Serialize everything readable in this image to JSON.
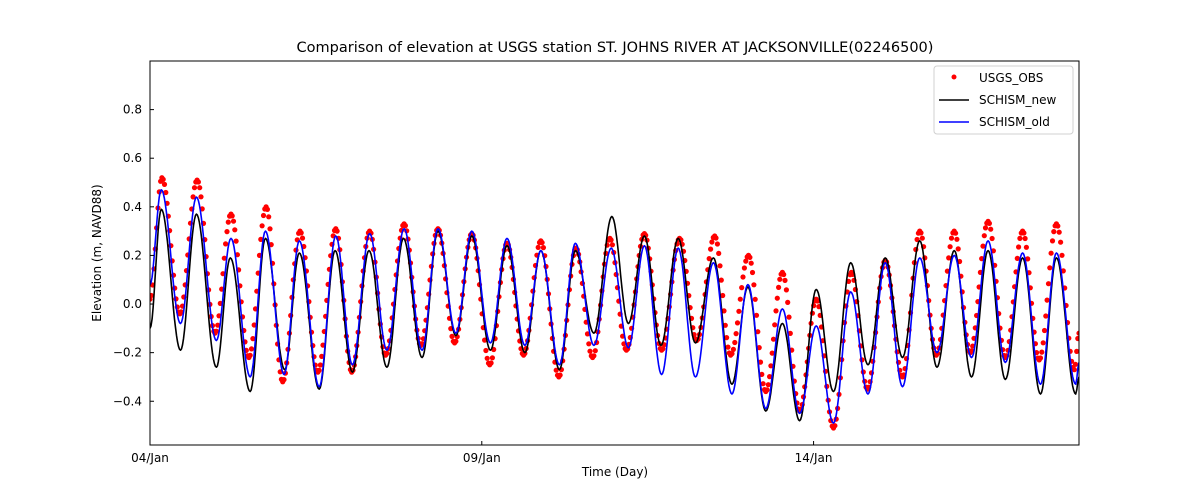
{
  "chart_data": {
    "type": "line",
    "title": "Comparison of elevation at USGS station ST. JOHNS RIVER AT JACKSONVILLE(02246500)",
    "xlabel": "Time (Day)",
    "ylabel": "Elevation (m, NAVD88)",
    "x_units": "days since 04/Jan 00:00",
    "xlim": [
      0,
      14.0
    ],
    "ylim": [
      -0.58,
      1.0
    ],
    "x_ticks": [
      {
        "value": 0,
        "label": "04/Jan"
      },
      {
        "value": 5,
        "label": "09/Jan"
      },
      {
        "value": 10,
        "label": "14/Jan"
      }
    ],
    "y_ticks": [
      {
        "value": -0.4,
        "label": "−0.4"
      },
      {
        "value": -0.2,
        "label": "−0.2"
      },
      {
        "value": 0.0,
        "label": "0.0"
      },
      {
        "value": 0.2,
        "label": "0.2"
      },
      {
        "value": 0.4,
        "label": "0.4"
      },
      {
        "value": 0.6,
        "label": "0.6"
      },
      {
        "value": 0.8,
        "label": "0.8"
      }
    ],
    "grid": false,
    "legend_position": "top-right",
    "series": [
      {
        "name": "USGS_OBS",
        "style": "markers",
        "color": "#ff0000",
        "start": {
          "x": 0.0,
          "y": 0.02
        },
        "extrema": [
          [
            0.18,
            0.52
          ],
          [
            0.45,
            -0.04
          ],
          [
            0.71,
            0.51
          ],
          [
            0.98,
            -0.12
          ],
          [
            1.22,
            0.37
          ],
          [
            1.49,
            -0.22
          ],
          [
            1.75,
            0.4
          ],
          [
            2.0,
            -0.32
          ],
          [
            2.26,
            0.3
          ],
          [
            2.53,
            -0.28
          ],
          [
            2.8,
            0.31
          ],
          [
            3.04,
            -0.28
          ],
          [
            3.31,
            0.3
          ],
          [
            3.55,
            -0.21
          ],
          [
            3.83,
            0.33
          ],
          [
            4.08,
            -0.17
          ],
          [
            4.34,
            0.31
          ],
          [
            4.59,
            -0.16
          ],
          [
            4.85,
            0.29
          ],
          [
            5.12,
            -0.25
          ],
          [
            5.38,
            0.25
          ],
          [
            5.63,
            -0.21
          ],
          [
            5.89,
            0.26
          ],
          [
            6.16,
            -0.3
          ],
          [
            6.42,
            0.23
          ],
          [
            6.67,
            -0.22
          ],
          [
            6.93,
            0.27
          ],
          [
            7.18,
            -0.19
          ],
          [
            7.45,
            0.29
          ],
          [
            7.71,
            -0.19
          ],
          [
            7.98,
            0.27
          ],
          [
            8.24,
            -0.15
          ],
          [
            8.51,
            0.28
          ],
          [
            8.75,
            -0.21
          ],
          [
            9.02,
            0.2
          ],
          [
            9.28,
            -0.36
          ],
          [
            9.53,
            0.13
          ],
          [
            9.79,
            -0.44
          ],
          [
            10.04,
            0.02
          ],
          [
            10.3,
            -0.51
          ],
          [
            10.57,
            0.13
          ],
          [
            10.81,
            -0.35
          ],
          [
            11.08,
            0.18
          ],
          [
            11.34,
            -0.3
          ],
          [
            11.6,
            0.3
          ],
          [
            11.85,
            -0.21
          ],
          [
            12.12,
            0.3
          ],
          [
            12.36,
            -0.2
          ],
          [
            12.63,
            0.34
          ],
          [
            12.89,
            -0.22
          ],
          [
            13.15,
            0.3
          ],
          [
            13.4,
            -0.23
          ],
          [
            13.66,
            0.33
          ],
          [
            13.93,
            -0.27
          ]
        ],
        "end": {
          "x": 14.0,
          "y": -0.12
        }
      },
      {
        "name": "SCHISM_new",
        "style": "line",
        "color": "#000000",
        "start": {
          "x": 0.0,
          "y": -0.1
        },
        "extrema": [
          [
            0.17,
            0.39
          ],
          [
            0.46,
            -0.19
          ],
          [
            0.7,
            0.37
          ],
          [
            1.0,
            -0.26
          ],
          [
            1.21,
            0.19
          ],
          [
            1.51,
            -0.36
          ],
          [
            1.74,
            0.27
          ],
          [
            2.03,
            -0.27
          ],
          [
            2.25,
            0.21
          ],
          [
            2.55,
            -0.35
          ],
          [
            2.79,
            0.22
          ],
          [
            3.05,
            -0.28
          ],
          [
            3.3,
            0.22
          ],
          [
            3.57,
            -0.26
          ],
          [
            3.82,
            0.27
          ],
          [
            4.1,
            -0.22
          ],
          [
            4.34,
            0.3
          ],
          [
            4.61,
            -0.13
          ],
          [
            4.85,
            0.28
          ],
          [
            5.13,
            -0.19
          ],
          [
            5.38,
            0.24
          ],
          [
            5.65,
            -0.2
          ],
          [
            5.89,
            0.22
          ],
          [
            6.17,
            -0.27
          ],
          [
            6.41,
            0.22
          ],
          [
            6.69,
            -0.12
          ],
          [
            6.96,
            0.36
          ],
          [
            7.21,
            -0.08
          ],
          [
            7.45,
            0.28
          ],
          [
            7.7,
            -0.17
          ],
          [
            7.96,
            0.27
          ],
          [
            8.22,
            -0.16
          ],
          [
            8.49,
            0.19
          ],
          [
            8.77,
            -0.33
          ],
          [
            9.01,
            0.07
          ],
          [
            9.28,
            -0.44
          ],
          [
            9.53,
            -0.08
          ],
          [
            9.79,
            -0.48
          ],
          [
            10.04,
            0.06
          ],
          [
            10.3,
            -0.36
          ],
          [
            10.56,
            0.17
          ],
          [
            10.82,
            -0.25
          ],
          [
            11.08,
            0.19
          ],
          [
            11.34,
            -0.22
          ],
          [
            11.6,
            0.26
          ],
          [
            11.86,
            -0.26
          ],
          [
            12.12,
            0.22
          ],
          [
            12.38,
            -0.3
          ],
          [
            12.63,
            0.22
          ],
          [
            12.89,
            -0.31
          ],
          [
            13.15,
            0.19
          ],
          [
            13.42,
            -0.37
          ],
          [
            13.66,
            0.19
          ],
          [
            13.95,
            -0.37
          ]
        ],
        "end": {
          "x": 14.0,
          "y": -0.3
        }
      },
      {
        "name": "SCHISM_old",
        "style": "line",
        "color": "#0000ff",
        "start": {
          "x": 0.0,
          "y": 0.08
        },
        "extrema": [
          [
            0.17,
            0.47
          ],
          [
            0.46,
            -0.08
          ],
          [
            0.7,
            0.44
          ],
          [
            1.0,
            -0.15
          ],
          [
            1.22,
            0.27
          ],
          [
            1.51,
            -0.3
          ],
          [
            1.74,
            0.3
          ],
          [
            2.02,
            -0.29
          ],
          [
            2.25,
            0.26
          ],
          [
            2.55,
            -0.34
          ],
          [
            2.8,
            0.28
          ],
          [
            3.05,
            -0.25
          ],
          [
            3.31,
            0.29
          ],
          [
            3.57,
            -0.19
          ],
          [
            3.83,
            0.31
          ],
          [
            4.1,
            -0.19
          ],
          [
            4.34,
            0.31
          ],
          [
            4.61,
            -0.12
          ],
          [
            4.85,
            0.3
          ],
          [
            5.13,
            -0.16
          ],
          [
            5.38,
            0.27
          ],
          [
            5.65,
            -0.17
          ],
          [
            5.89,
            0.22
          ],
          [
            6.17,
            -0.25
          ],
          [
            6.41,
            0.25
          ],
          [
            6.69,
            -0.17
          ],
          [
            6.95,
            0.23
          ],
          [
            7.21,
            -0.18
          ],
          [
            7.45,
            0.24
          ],
          [
            7.71,
            -0.29
          ],
          [
            7.96,
            0.23
          ],
          [
            8.22,
            -0.3
          ],
          [
            8.49,
            0.17
          ],
          [
            8.77,
            -0.37
          ],
          [
            9.01,
            0.08
          ],
          [
            9.28,
            -0.43
          ],
          [
            9.53,
            -0.02
          ],
          [
            9.79,
            -0.45
          ],
          [
            10.04,
            -0.09
          ],
          [
            10.3,
            -0.49
          ],
          [
            10.56,
            0.05
          ],
          [
            10.82,
            -0.37
          ],
          [
            11.08,
            0.17
          ],
          [
            11.34,
            -0.34
          ],
          [
            11.6,
            0.19
          ],
          [
            11.86,
            -0.2
          ],
          [
            12.12,
            0.2
          ],
          [
            12.38,
            -0.22
          ],
          [
            12.63,
            0.26
          ],
          [
            12.89,
            -0.24
          ],
          [
            13.15,
            0.21
          ],
          [
            13.42,
            -0.33
          ],
          [
            13.66,
            0.21
          ],
          [
            13.95,
            -0.33
          ]
        ],
        "end": {
          "x": 14.0,
          "y": -0.24
        }
      }
    ]
  }
}
